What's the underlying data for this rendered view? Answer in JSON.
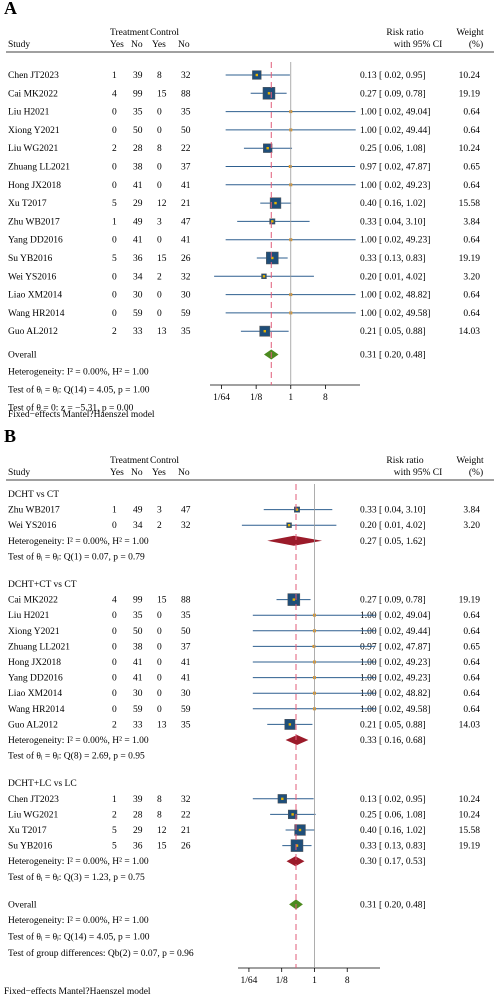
{
  "chart_data": [
    {
      "type": "forest",
      "panel": "A",
      "headers": {
        "study": "Study",
        "treatment": "Treatment",
        "control": "Control",
        "yes": "Yes",
        "no": "No",
        "ratio1": "Risk ratio",
        "ratio2": "with 95% CI",
        "weight1": "Weight",
        "weight2": "(%)"
      },
      "axis": {
        "scale": "log2",
        "ticks": [
          "1/64",
          "1/8",
          "1",
          "8"
        ],
        "tick_values": [
          0.015625,
          0.125,
          1,
          8
        ],
        "xlim": [
          0.0078125,
          64
        ]
      },
      "reference_line": 1,
      "overall_line": 0.31,
      "rows": [
        {
          "study": "Chen JT2023",
          "t_yes": "1",
          "t_no": "39",
          "c_yes": "8",
          "c_no": "32",
          "rr": 0.13,
          "lo": 0.02,
          "hi": 0.95,
          "ci": "0.13 [  0.02,     0.95]",
          "weight": "10.24"
        },
        {
          "study": "Cai MK2022",
          "t_yes": "4",
          "t_no": "99",
          "c_yes": "15",
          "c_no": "88",
          "rr": 0.27,
          "lo": 0.09,
          "hi": 0.78,
          "ci": "0.27 [  0.09,     0.78]",
          "weight": "19.19"
        },
        {
          "study": "Liu H2021",
          "t_yes": "0",
          "t_no": "35",
          "c_yes": "0",
          "c_no": "35",
          "rr": 1.0,
          "lo": 0.02,
          "hi": 49.04,
          "ci": "1.00 [  0.02,   49.04]",
          "weight": "0.64"
        },
        {
          "study": "Xiong Y2021",
          "t_yes": "0",
          "t_no": "50",
          "c_yes": "0",
          "c_no": "50",
          "rr": 1.0,
          "lo": 0.02,
          "hi": 49.44,
          "ci": "1.00 [  0.02,   49.44]",
          "weight": "0.64"
        },
        {
          "study": "Liu WG2021",
          "t_yes": "2",
          "t_no": "28",
          "c_yes": "8",
          "c_no": "22",
          "rr": 0.25,
          "lo": 0.06,
          "hi": 1.08,
          "ci": "0.25 [  0.06,     1.08]",
          "weight": "10.24"
        },
        {
          "study": "Zhuang LL2021",
          "t_yes": "0",
          "t_no": "38",
          "c_yes": "0",
          "c_no": "37",
          "rr": 0.97,
          "lo": 0.02,
          "hi": 47.87,
          "ci": "0.97 [  0.02,   47.87]",
          "weight": "0.65"
        },
        {
          "study": "Hong JX2018",
          "t_yes": "0",
          "t_no": "41",
          "c_yes": "0",
          "c_no": "41",
          "rr": 1.0,
          "lo": 0.02,
          "hi": 49.23,
          "ci": "1.00 [  0.02,   49.23]",
          "weight": "0.64"
        },
        {
          "study": "Xu T2017",
          "t_yes": "5",
          "t_no": "29",
          "c_yes": "12",
          "c_no": "21",
          "rr": 0.4,
          "lo": 0.16,
          "hi": 1.02,
          "ci": "0.40 [  0.16,     1.02]",
          "weight": "15.58"
        },
        {
          "study": "Zhu WB2017",
          "t_yes": "1",
          "t_no": "49",
          "c_yes": "3",
          "c_no": "47",
          "rr": 0.33,
          "lo": 0.04,
          "hi": 3.1,
          "ci": "0.33 [  0.04,     3.10]",
          "weight": "3.84"
        },
        {
          "study": "Yang DD2016",
          "t_yes": "0",
          "t_no": "41",
          "c_yes": "0",
          "c_no": "41",
          "rr": 1.0,
          "lo": 0.02,
          "hi": 49.23,
          "ci": "1.00 [  0.02,   49.23]",
          "weight": "0.64"
        },
        {
          "study": "Su YB2016",
          "t_yes": "5",
          "t_no": "36",
          "c_yes": "15",
          "c_no": "26",
          "rr": 0.33,
          "lo": 0.13,
          "hi": 0.83,
          "ci": "0.33 [  0.13,     0.83]",
          "weight": "19.19"
        },
        {
          "study": "Wei YS2016",
          "t_yes": "0",
          "t_no": "34",
          "c_yes": "2",
          "c_no": "32",
          "rr": 0.2,
          "lo": 0.01,
          "hi": 4.02,
          "ci": "0.20 [  0.01,     4.02]",
          "weight": "3.20"
        },
        {
          "study": "Liao XM2014",
          "t_yes": "0",
          "t_no": "30",
          "c_yes": "0",
          "c_no": "30",
          "rr": 1.0,
          "lo": 0.02,
          "hi": 48.82,
          "ci": "1.00 [  0.02,   48.82]",
          "weight": "0.64"
        },
        {
          "study": "Wang HR2014",
          "t_yes": "0",
          "t_no": "59",
          "c_yes": "0",
          "c_no": "59",
          "rr": 1.0,
          "lo": 0.02,
          "hi": 49.58,
          "ci": "1.00 [  0.02,   49.58]",
          "weight": "0.64"
        },
        {
          "study": "Guo AL2012",
          "t_yes": "2",
          "t_no": "33",
          "c_yes": "13",
          "c_no": "35",
          "rr": 0.21,
          "lo": 0.05,
          "hi": 0.88,
          "ci": "0.21 [  0.05,     0.88]",
          "weight": "14.03"
        }
      ],
      "overall": {
        "label": "Overall",
        "rr": 0.31,
        "lo": 0.2,
        "hi": 0.48,
        "ci": "0.31 [  0.20,     0.48]"
      },
      "stats": [
        "Heterogeneity: I² = 0.00%, H² = 1.00",
        "Test of θᵢ = θⱼ: Q(14) = 4.05, p = 1.00",
        "Test of θ = 0: z = −5.31, p = 0.00"
      ],
      "model_note": "Fixed−effects Mantel?Haenszel model"
    },
    {
      "type": "forest",
      "panel": "B",
      "headers": {
        "study": "Study",
        "treatment": "Treatment",
        "control": "Control",
        "yes": "Yes",
        "no": "No",
        "ratio1": "Risk ratio",
        "ratio2": "with 95% CI",
        "weight1": "Weight",
        "weight2": "(%)"
      },
      "axis": {
        "scale": "log2",
        "ticks": [
          "1/64",
          "1/8",
          "1",
          "8"
        ],
        "tick_values": [
          0.015625,
          0.125,
          1,
          8
        ],
        "xlim": [
          0.0078125,
          64
        ]
      },
      "reference_line": 1,
      "overall_line": 0.31,
      "groups": [
        {
          "title": "DCHT vs CT",
          "rows": [
            {
              "study": "Zhu WB2017",
              "t_yes": "1",
              "t_no": "49",
              "c_yes": "3",
              "c_no": "47",
              "rr": 0.33,
              "lo": 0.04,
              "hi": 3.1,
              "ci": "0.33 [  0.04,     3.10]",
              "weight": "3.84"
            },
            {
              "study": "Wei YS2016",
              "t_yes": "0",
              "t_no": "34",
              "c_yes": "2",
              "c_no": "32",
              "rr": 0.2,
              "lo": 0.01,
              "hi": 4.02,
              "ci": "0.20 [  0.01,     4.02]",
              "weight": "3.20"
            }
          ],
          "subtotal": {
            "rr": 0.27,
            "lo": 0.05,
            "hi": 1.62,
            "ci": "0.27 [  0.05,     1.62]"
          },
          "stats": [
            "Heterogeneity: I² = 0.00%, H² = 1.00",
            "Test of θᵢ = θⱼ: Q(1) = 0.07, p = 0.79"
          ]
        },
        {
          "title": "DCHT+CT vs CT",
          "rows": [
            {
              "study": "Cai MK2022",
              "t_yes": "4",
              "t_no": "99",
              "c_yes": "15",
              "c_no": "88",
              "rr": 0.27,
              "lo": 0.09,
              "hi": 0.78,
              "ci": "0.27 [  0.09,     0.78]",
              "weight": "19.19"
            },
            {
              "study": "Liu H2021",
              "t_yes": "0",
              "t_no": "35",
              "c_yes": "0",
              "c_no": "35",
              "rr": 1.0,
              "lo": 0.02,
              "hi": 49.04,
              "ci": "1.00 [  0.02,   49.04]",
              "weight": "0.64"
            },
            {
              "study": "Xiong Y2021",
              "t_yes": "0",
              "t_no": "50",
              "c_yes": "0",
              "c_no": "50",
              "rr": 1.0,
              "lo": 0.02,
              "hi": 49.44,
              "ci": "1.00 [  0.02,   49.44]",
              "weight": "0.64"
            },
            {
              "study": "Zhuang LL2021",
              "t_yes": "0",
              "t_no": "38",
              "c_yes": "0",
              "c_no": "37",
              "rr": 0.97,
              "lo": 0.02,
              "hi": 47.87,
              "ci": "0.97 [  0.02,   47.87]",
              "weight": "0.65"
            },
            {
              "study": "Hong JX2018",
              "t_yes": "0",
              "t_no": "41",
              "c_yes": "0",
              "c_no": "41",
              "rr": 1.0,
              "lo": 0.02,
              "hi": 49.23,
              "ci": "1.00 [  0.02,   49.23]",
              "weight": "0.64"
            },
            {
              "study": "Yang DD2016",
              "t_yes": "0",
              "t_no": "41",
              "c_yes": "0",
              "c_no": "41",
              "rr": 1.0,
              "lo": 0.02,
              "hi": 49.23,
              "ci": "1.00 [  0.02,   49.23]",
              "weight": "0.64"
            },
            {
              "study": "Liao XM2014",
              "t_yes": "0",
              "t_no": "30",
              "c_yes": "0",
              "c_no": "30",
              "rr": 1.0,
              "lo": 0.02,
              "hi": 48.82,
              "ci": "1.00 [  0.02,   48.82]",
              "weight": "0.64"
            },
            {
              "study": "Wang HR2014",
              "t_yes": "0",
              "t_no": "59",
              "c_yes": "0",
              "c_no": "59",
              "rr": 1.0,
              "lo": 0.02,
              "hi": 49.58,
              "ci": "1.00 [  0.02,   49.58]",
              "weight": "0.64"
            },
            {
              "study": "Guo AL2012",
              "t_yes": "2",
              "t_no": "33",
              "c_yes": "13",
              "c_no": "35",
              "rr": 0.21,
              "lo": 0.05,
              "hi": 0.88,
              "ci": "0.21 [  0.05,     0.88]",
              "weight": "14.03"
            }
          ],
          "subtotal": {
            "rr": 0.33,
            "lo": 0.16,
            "hi": 0.68,
            "ci": "0.33 [  0.16,     0.68]"
          },
          "stats": [
            "Heterogeneity: I² = 0.00%, H² = 1.00",
            "Test of θᵢ = θⱼ: Q(8) = 2.69, p = 0.95"
          ]
        },
        {
          "title": "DCHT+LC vs LC",
          "rows": [
            {
              "study": "Chen JT2023",
              "t_yes": "1",
              "t_no": "39",
              "c_yes": "8",
              "c_no": "32",
              "rr": 0.13,
              "lo": 0.02,
              "hi": 0.95,
              "ci": "0.13 [  0.02,     0.95]",
              "weight": "10.24"
            },
            {
              "study": "Liu WG2021",
              "t_yes": "2",
              "t_no": "28",
              "c_yes": "8",
              "c_no": "22",
              "rr": 0.25,
              "lo": 0.06,
              "hi": 1.08,
              "ci": "0.25 [  0.06,     1.08]",
              "weight": "10.24"
            },
            {
              "study": "Xu T2017",
              "t_yes": "5",
              "t_no": "29",
              "c_yes": "12",
              "c_no": "21",
              "rr": 0.4,
              "lo": 0.16,
              "hi": 1.02,
              "ci": "0.40 [  0.16,     1.02]",
              "weight": "15.58"
            },
            {
              "study": "Su YB2016",
              "t_yes": "5",
              "t_no": "36",
              "c_yes": "15",
              "c_no": "26",
              "rr": 0.33,
              "lo": 0.13,
              "hi": 0.83,
              "ci": "0.33 [  0.13,     0.83]",
              "weight": "19.19"
            }
          ],
          "subtotal": {
            "rr": 0.3,
            "lo": 0.17,
            "hi": 0.53,
            "ci": "0.30 [  0.17,     0.53]"
          },
          "stats": [
            "Heterogeneity: I² = 0.00%, H² = 1.00",
            "Test of θᵢ = θⱼ: Q(3) = 1.23, p = 0.75"
          ]
        }
      ],
      "overall": {
        "label": "Overall",
        "rr": 0.31,
        "lo": 0.2,
        "hi": 0.48,
        "ci": "0.31 [  0.20,     0.48]"
      },
      "stats": [
        "Heterogeneity: I² = 0.00%, H² = 1.00",
        "Test of θᵢ = θⱼ: Q(14) = 4.05, p = 1.00",
        "Test of group differences: Qb(2) = 0.07, p = 0.96"
      ],
      "model_note": "Fixed−effects Mantel?Haenszel model"
    }
  ],
  "colors": {
    "ci_line": "#2e5f8f",
    "box_fill": "#1f4e79",
    "box_center": "#e6b300",
    "small_marker": "#d9962e",
    "overall_diamond": "#4c8a1f",
    "subgroup_diamond": "#9b1b2a",
    "overall_dashed": "#e05c7a",
    "null_line": "#999999"
  }
}
